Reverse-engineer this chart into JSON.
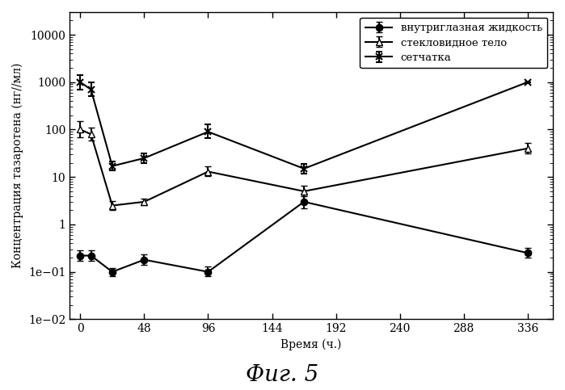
{
  "title": "Фиг. 5",
  "xlabel": "Время (ч.)",
  "ylabel": "Концентрация тазаротена (нг//мл)",
  "xticks": [
    0,
    48,
    96,
    144,
    192,
    240,
    288,
    336
  ],
  "xlim": [
    -8,
    355
  ],
  "ylim": [
    0.01,
    30000
  ],
  "series": {
    "aqueous": {
      "label": "внутриглазная жидкость",
      "marker": "o",
      "x": [
        0,
        8,
        24,
        48,
        96,
        168,
        336
      ],
      "y": [
        0.22,
        0.22,
        0.1,
        0.18,
        0.1,
        3.0,
        0.25
      ],
      "yerr_lo": [
        0.05,
        0.05,
        0.02,
        0.04,
        0.02,
        0.8,
        0.05
      ],
      "yerr_hi": [
        0.07,
        0.07,
        0.02,
        0.05,
        0.03,
        1.2,
        0.07
      ],
      "fillstyle": "full"
    },
    "vitreous": {
      "label": "стекловидное тело",
      "marker": "^",
      "x": [
        0,
        8,
        24,
        48,
        96,
        168,
        336
      ],
      "y": [
        100,
        80,
        2.5,
        3.0,
        13,
        5.0,
        40
      ],
      "yerr_lo": [
        30,
        20,
        0.5,
        0.4,
        2.5,
        1.0,
        8
      ],
      "yerr_hi": [
        50,
        30,
        0.6,
        0.5,
        3.5,
        1.5,
        12
      ],
      "fillstyle": "none"
    },
    "retina": {
      "label": "сетчатка",
      "marker": "x",
      "x": [
        0,
        8,
        24,
        48,
        96,
        168,
        336
      ],
      "y": [
        1000,
        700,
        17,
        25,
        90,
        15,
        1000
      ],
      "yerr_lo": [
        300,
        200,
        3,
        5,
        25,
        3,
        0
      ],
      "yerr_hi": [
        400,
        300,
        4,
        6,
        40,
        4,
        0
      ],
      "fillstyle": "full"
    }
  },
  "line_color": "black",
  "markersize": 6,
  "linewidth": 1.5,
  "capsize": 3,
  "legend_fontsize": 9.5,
  "axis_fontsize": 10,
  "title_fontsize": 20
}
